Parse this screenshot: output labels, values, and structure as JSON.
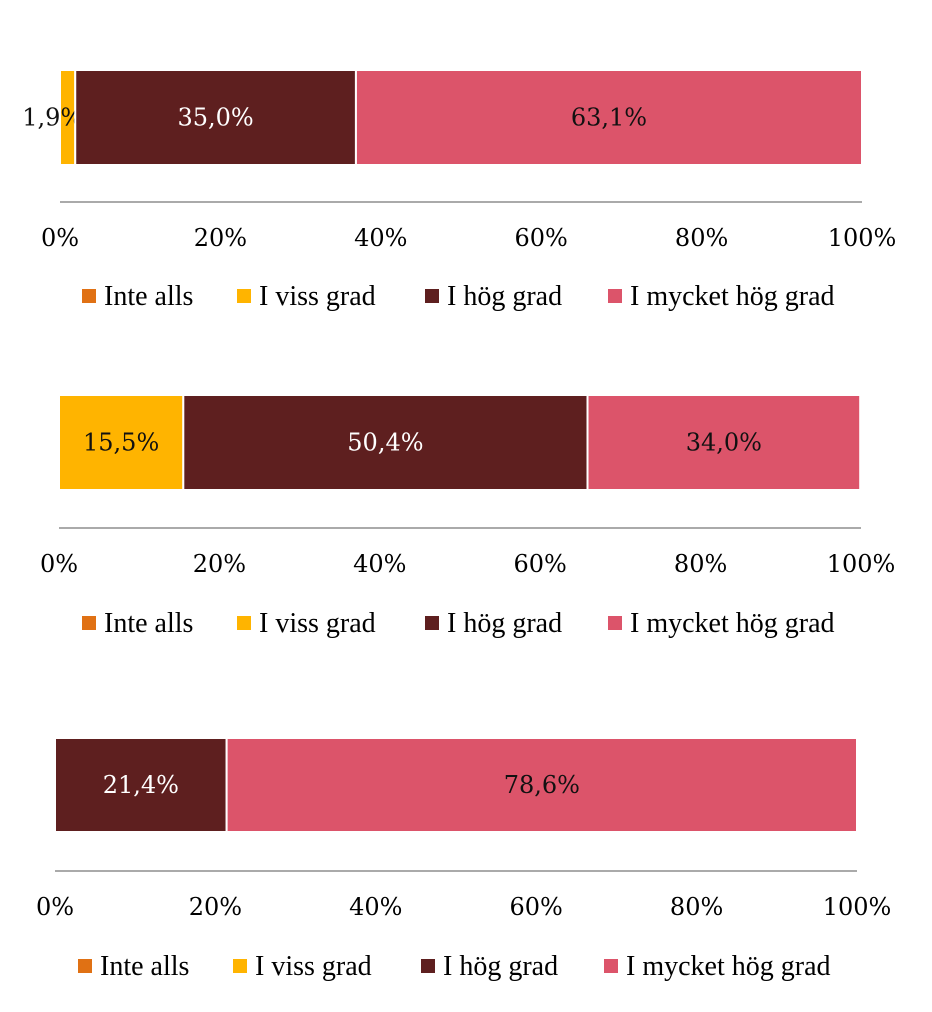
{
  "colors": {
    "Inte alls": "#E07114",
    "I viss grad": "#FFB400",
    "I hög grad": "#5E1F1F",
    "I mycket hög grad": "#DC546A",
    "axis": "#AAAAAA"
  },
  "chart_data": [
    {
      "type": "bar",
      "orientation": "horizontal",
      "stacked": true,
      "xlim": [
        0,
        100
      ],
      "ticks": [
        "0%",
        "20%",
        "40%",
        "60%",
        "80%",
        "100%"
      ],
      "legend": [
        "Inte alls",
        "I viss grad",
        "I hög grad",
        "I mycket hög grad"
      ],
      "legend_position": "bottom",
      "series": [
        {
          "name": "Inte alls",
          "value": 0,
          "label": ""
        },
        {
          "name": "I viss grad",
          "value": 1.9,
          "label": "1,9%"
        },
        {
          "name": "I hög grad",
          "value": 35.0,
          "label": "35,0%"
        },
        {
          "name": "I mycket hög grad",
          "value": 63.1,
          "label": "63,1%"
        }
      ]
    },
    {
      "type": "bar",
      "orientation": "horizontal",
      "stacked": true,
      "xlim": [
        0,
        100
      ],
      "ticks": [
        "0%",
        "20%",
        "40%",
        "60%",
        "80%",
        "100%"
      ],
      "legend": [
        "Inte alls",
        "I viss grad",
        "I hög grad",
        "I mycket hög grad"
      ],
      "legend_position": "bottom",
      "series": [
        {
          "name": "Inte alls",
          "value": 0,
          "label": ""
        },
        {
          "name": "I viss grad",
          "value": 15.5,
          "label": "15,5%"
        },
        {
          "name": "I hög grad",
          "value": 50.4,
          "label": "50,4%"
        },
        {
          "name": "I mycket hög grad",
          "value": 34.0,
          "label": "34,0%"
        }
      ]
    },
    {
      "type": "bar",
      "orientation": "horizontal",
      "stacked": true,
      "xlim": [
        0,
        100
      ],
      "ticks": [
        "0%",
        "20%",
        "40%",
        "60%",
        "80%",
        "100%"
      ],
      "legend": [
        "Inte alls",
        "I viss grad",
        "I hög grad",
        "I mycket hög grad"
      ],
      "legend_position": "bottom",
      "series": [
        {
          "name": "Inte alls",
          "value": 0,
          "label": ""
        },
        {
          "name": "I viss grad",
          "value": 0,
          "label": ""
        },
        {
          "name": "I hög grad",
          "value": 21.4,
          "label": "21,4%"
        },
        {
          "name": "I mycket hög grad",
          "value": 78.6,
          "label": "78,6%"
        }
      ]
    }
  ]
}
